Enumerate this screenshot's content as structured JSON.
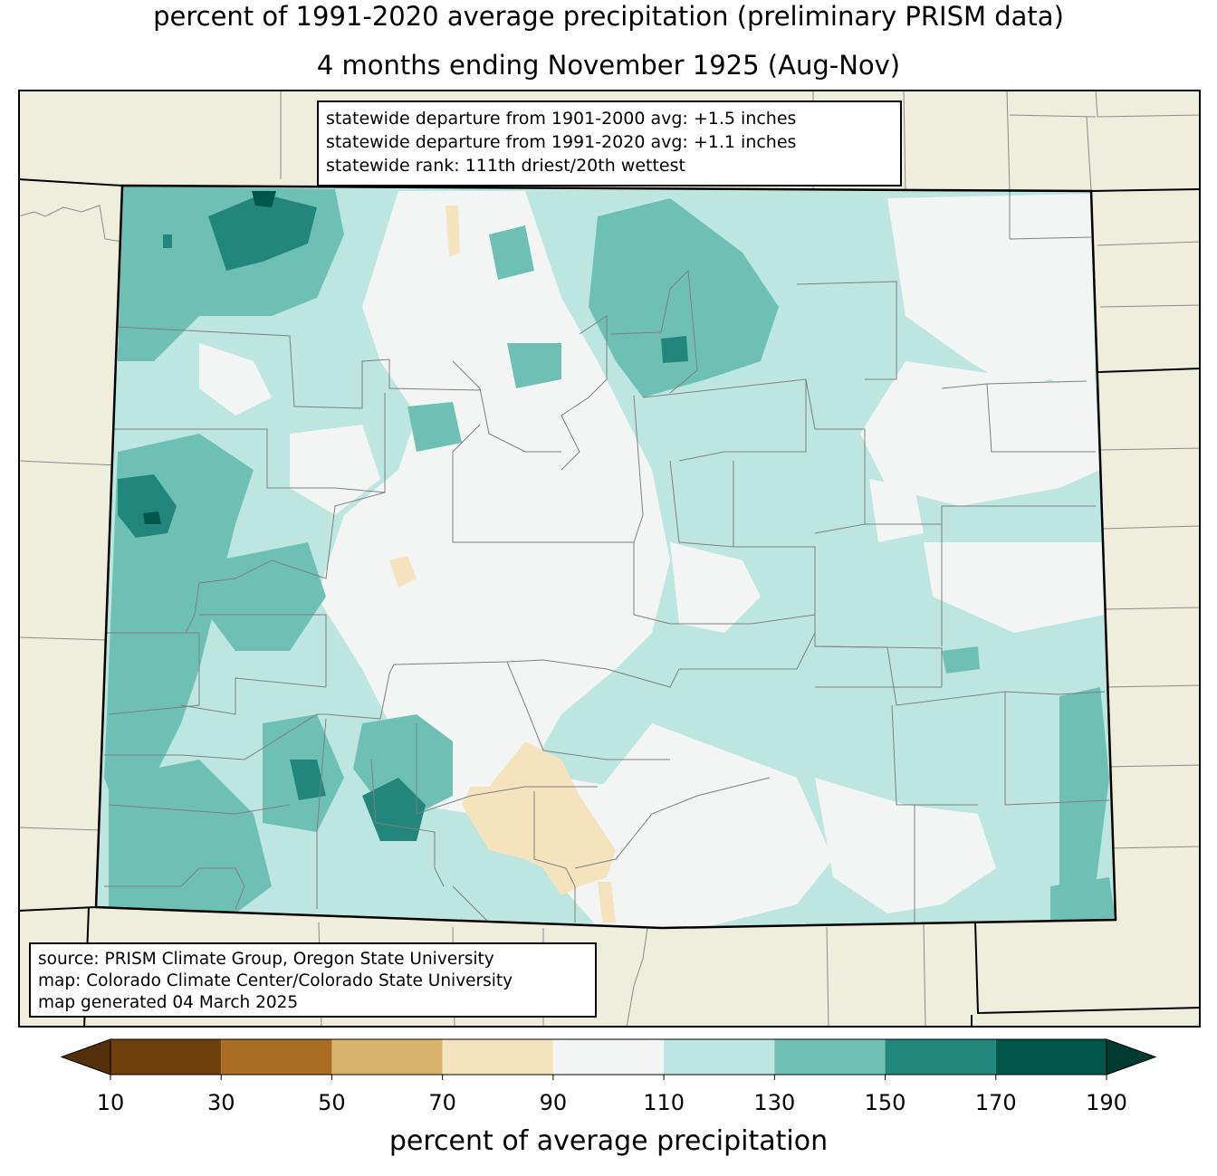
{
  "title": {
    "line1": "percent of 1991-2020 average precipitation (preliminary PRISM data)",
    "line2": "4 months ending November 1925 (Aug-Nov)"
  },
  "stats": {
    "line1": "statewide departure from 1901-2000 avg: +1.5 inches",
    "line2": "statewide departure from 1991-2020 avg: +1.1 inches",
    "line3": "statewide rank: 111th driest/20th wettest"
  },
  "source": {
    "line1": "source: PRISM Climate Group, Oregon State University",
    "line2": "map: Colorado Climate Center/Colorado State University",
    "line3": "map generated 04 March 2025"
  },
  "colorbar": {
    "label": "percent of average precipitation",
    "ticks": [
      "10",
      "30",
      "50",
      "70",
      "90",
      "110",
      "130",
      "150",
      "170",
      "190"
    ],
    "bin_colors": [
      "#6f3f0d",
      "#a96d24",
      "#d8b36b",
      "#f4e3bd",
      "#f3f5f4",
      "#bde6e0",
      "#6fc0b4",
      "#22867c",
      "#00564a"
    ],
    "under_color": "#54300a",
    "over_color": "#003b32"
  },
  "map_colors": {
    "background_land": "#efeedd",
    "state_line": "#000000",
    "county_line": "#7f7f7f"
  }
}
